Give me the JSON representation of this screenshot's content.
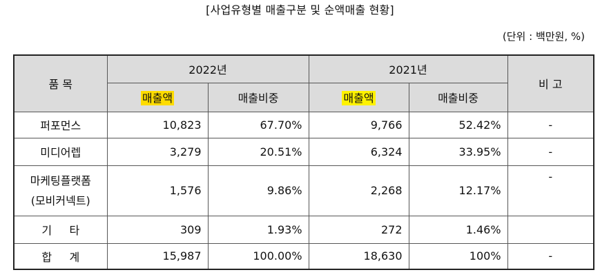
{
  "title": "[사업유형별 매출구분 및 순액매출 현황]",
  "unit": "(단위 : 백만원, %)",
  "header": {
    "item": "품 목",
    "year1": "2022년",
    "year2": "2021년",
    "note": "비 고",
    "sales": "매출액",
    "ratio": "매출비중"
  },
  "rows": [
    {
      "label": "퍼포먼스",
      "s22": "10,823",
      "r22": "67.70%",
      "s21": "9,766",
      "r21": "52.42%",
      "note": "-"
    },
    {
      "label": "미디어렙",
      "s22": "3,279",
      "r22": "20.51%",
      "s21": "6,324",
      "r21": "33.95%",
      "note": "-"
    },
    {
      "label": "마케팅플랫폼",
      "label2": "(모비커넥트)",
      "s22": "1,576",
      "r22": "9.86%",
      "s21": "2,268",
      "r21": "12.17%",
      "note": "-"
    },
    {
      "label": "기     타",
      "s22": "309",
      "r22": "1.93%",
      "s21": "272",
      "r21": "1.46%",
      "note": ""
    },
    {
      "label": "합     계",
      "s22": "15,987",
      "r22": "100.00%",
      "s21": "18,630",
      "r21": "100%",
      "note": "-"
    }
  ]
}
